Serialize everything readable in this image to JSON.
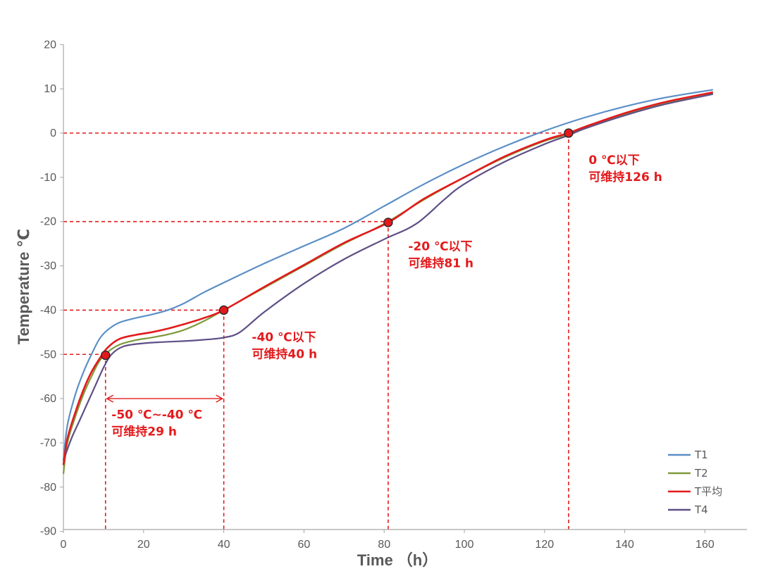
{
  "chart_data": {
    "type": "line",
    "xlabel": "Time （h）",
    "ylabel": "Temperature ℃",
    "xlim": [
      0,
      170
    ],
    "ylim": [
      -90,
      20
    ],
    "x_ticks": [
      0,
      20,
      40,
      60,
      80,
      100,
      120,
      140,
      160
    ],
    "y_ticks": [
      20,
      10,
      0,
      -10,
      -20,
      -30,
      -40,
      -50,
      -60,
      -70,
      -80,
      -90
    ],
    "grid": false,
    "legend_position": "bottom-right",
    "series": [
      {
        "name": "T1",
        "color": "#5b8fc7",
        "points": [
          [
            0,
            -74
          ],
          [
            1,
            -66
          ],
          [
            3,
            -59
          ],
          [
            5,
            -54
          ],
          [
            7,
            -50
          ],
          [
            9,
            -46.5
          ],
          [
            11,
            -44.5
          ],
          [
            14,
            -42.8
          ],
          [
            18,
            -41.8
          ],
          [
            22,
            -41
          ],
          [
            26,
            -40
          ],
          [
            30,
            -38.5
          ],
          [
            35,
            -36
          ],
          [
            40,
            -33.8
          ],
          [
            50,
            -29.5
          ],
          [
            60,
            -25.5
          ],
          [
            70,
            -21.5
          ],
          [
            80,
            -16.5
          ],
          [
            90,
            -11.5
          ],
          [
            100,
            -7
          ],
          [
            110,
            -3
          ],
          [
            120,
            0.5
          ],
          [
            130,
            3.5
          ],
          [
            140,
            6
          ],
          [
            150,
            8
          ],
          [
            162,
            9.8
          ]
        ]
      },
      {
        "name": "T2",
        "color": "#7f9a3c",
        "points": [
          [
            0,
            -77
          ],
          [
            1,
            -70
          ],
          [
            3,
            -64
          ],
          [
            5,
            -59
          ],
          [
            7,
            -55
          ],
          [
            9,
            -51.5
          ],
          [
            11,
            -49.5
          ],
          [
            14,
            -47.8
          ],
          [
            18,
            -46.8
          ],
          [
            22,
            -46.2
          ],
          [
            26,
            -45.5
          ],
          [
            30,
            -44.5
          ],
          [
            35,
            -42.5
          ],
          [
            40,
            -40
          ],
          [
            50,
            -35
          ],
          [
            60,
            -30
          ],
          [
            70,
            -25
          ],
          [
            80,
            -20.5
          ],
          [
            90,
            -15
          ],
          [
            100,
            -10
          ],
          [
            110,
            -5.5
          ],
          [
            120,
            -1.8
          ],
          [
            126,
            -0.3
          ],
          [
            130,
            1.2
          ],
          [
            140,
            4.3
          ],
          [
            150,
            6.8
          ],
          [
            162,
            9
          ]
        ]
      },
      {
        "name": "T平均",
        "color": "#e31a1c",
        "points": [
          [
            0,
            -75
          ],
          [
            1,
            -69
          ],
          [
            3,
            -63
          ],
          [
            5,
            -58
          ],
          [
            7,
            -54
          ],
          [
            9,
            -51
          ],
          [
            11,
            -48.5
          ],
          [
            14,
            -46.5
          ],
          [
            18,
            -45.6
          ],
          [
            22,
            -45
          ],
          [
            26,
            -44.2
          ],
          [
            30,
            -43.2
          ],
          [
            35,
            -41.8
          ],
          [
            40,
            -40
          ],
          [
            50,
            -34.8
          ],
          [
            60,
            -29.8
          ],
          [
            70,
            -24.8
          ],
          [
            81,
            -20.2
          ],
          [
            90,
            -14.8
          ],
          [
            100,
            -10
          ],
          [
            110,
            -5.3
          ],
          [
            120,
            -1.6
          ],
          [
            126,
            0
          ],
          [
            130,
            1.4
          ],
          [
            140,
            4.5
          ],
          [
            150,
            7
          ],
          [
            162,
            9.2
          ]
        ]
      },
      {
        "name": "T4",
        "color": "#5e4f86",
        "points": [
          [
            0,
            -74
          ],
          [
            2,
            -69
          ],
          [
            4,
            -65
          ],
          [
            6,
            -61
          ],
          [
            8,
            -57
          ],
          [
            10,
            -53
          ],
          [
            12,
            -50
          ],
          [
            15,
            -48.2
          ],
          [
            20,
            -47.5
          ],
          [
            25,
            -47.2
          ],
          [
            30,
            -47
          ],
          [
            35,
            -46.7
          ],
          [
            40,
            -46.2
          ],
          [
            44,
            -45
          ],
          [
            50,
            -40.5
          ],
          [
            60,
            -34
          ],
          [
            70,
            -28.5
          ],
          [
            80,
            -24
          ],
          [
            88,
            -20.5
          ],
          [
            95,
            -15
          ],
          [
            100,
            -11.5
          ],
          [
            110,
            -6.5
          ],
          [
            120,
            -2.5
          ],
          [
            126,
            -0.5
          ],
          [
            130,
            1
          ],
          [
            140,
            4
          ],
          [
            150,
            6.5
          ],
          [
            162,
            8.8
          ]
        ]
      }
    ],
    "markers": [
      [
        10.5,
        -50.2
      ],
      [
        40,
        -40
      ],
      [
        81,
        -20.2
      ],
      [
        126,
        0
      ]
    ],
    "guides": [
      {
        "x": 10.5,
        "y": -50
      },
      {
        "x": 40,
        "y": -40
      },
      {
        "x": 81,
        "y": -20
      },
      {
        "x": 126,
        "y": 0
      }
    ],
    "range_arrow": {
      "y": -60,
      "x1": 10.5,
      "x2": 40
    },
    "annotations": [
      {
        "lines": [
          "-50 ℃~-40 ℃",
          "可维持29 h"
        ],
        "x": 12,
        "y": -64.5
      },
      {
        "lines": [
          "-40 ℃以下",
          "可维持40 h"
        ],
        "x": 47,
        "y": -47
      },
      {
        "lines": [
          "-20 ℃以下",
          "可维持81 h"
        ],
        "x": 86,
        "y": -26.5
      },
      {
        "lines": [
          "0 ℃以下",
          "可维持126 h"
        ],
        "x": 131,
        "y": -7
      }
    ],
    "guide_color": "#e31a1c"
  }
}
